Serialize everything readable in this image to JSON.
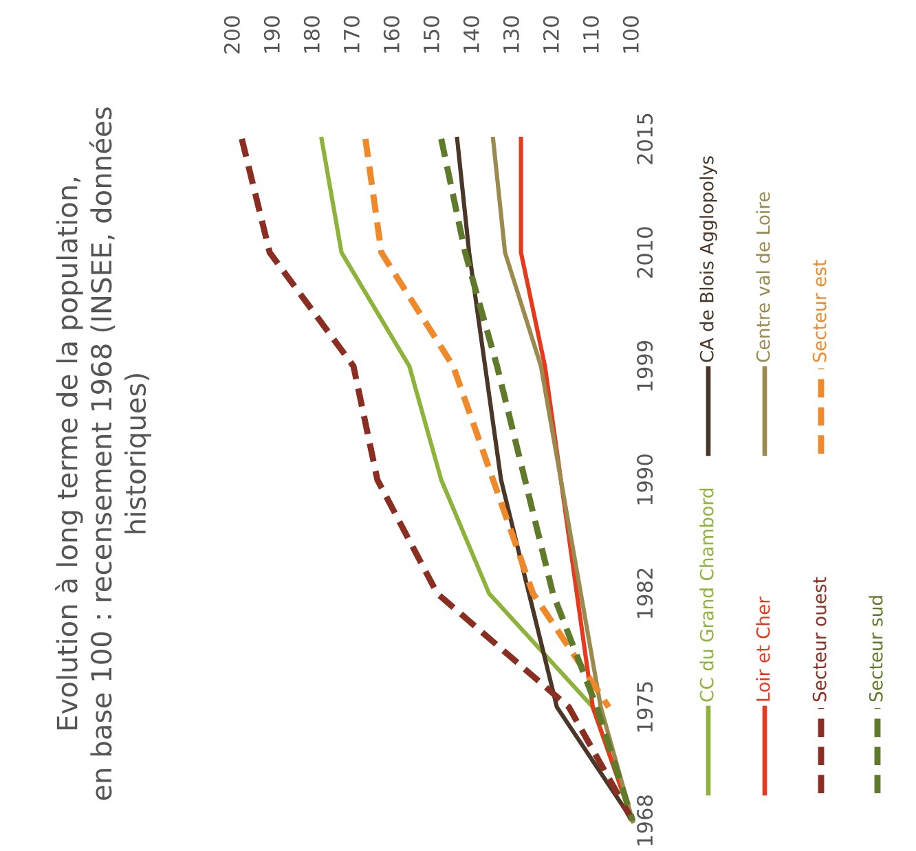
{
  "chart_data": {
    "type": "line",
    "orientation": "horizontal",
    "title": "Evolution à long terme de la population,\nen base 100 : recensement 1968 (INSEE, données\nhistoriques)",
    "categories": [
      "2015",
      "2010",
      "1999",
      "1990",
      "1982",
      "1975",
      "1968"
    ],
    "xlim": [
      200,
      100
    ],
    "xticks": [
      200,
      190,
      180,
      170,
      160,
      150,
      140,
      130,
      120,
      110,
      100
    ],
    "grid": false,
    "legend": "right",
    "series": [
      {
        "name": "CC du Grand Chambord",
        "color": "#8db33a",
        "line_style": "solid",
        "values": [
          178,
          173,
          156,
          148,
          136,
          110,
          100
        ]
      },
      {
        "name": "CA de Blois Agglopolys",
        "color": "#4a3728",
        "line_style": "solid",
        "values": [
          144,
          141,
          137,
          133,
          126,
          119,
          100
        ]
      },
      {
        "name": "Loir et Cher",
        "color": "#e8391f",
        "line_style": "solid",
        "values": [
          128,
          128,
          122,
          118,
          114,
          110,
          100
        ]
      },
      {
        "name": "Centre val de Loire",
        "color": "#9b8a4e",
        "line_style": "solid",
        "values": [
          135,
          132,
          123,
          118,
          113,
          108,
          100
        ]
      },
      {
        "name": "Secteur ouest",
        "color": "#8b2e22",
        "line_style": "dashed",
        "values": [
          198,
          191,
          170,
          164,
          149,
          116,
          100
        ]
      },
      {
        "name": "Secteur est",
        "color": "#f0892a",
        "line_style": "dashed",
        "values": [
          167,
          163,
          145,
          135,
          125,
          106,
          null
        ]
      },
      {
        "name": "Secteur sud",
        "color": "#5e7a2a",
        "line_style": "dashed",
        "values": [
          148,
          142,
          134,
          127,
          120,
          109,
          100
        ]
      }
    ]
  }
}
